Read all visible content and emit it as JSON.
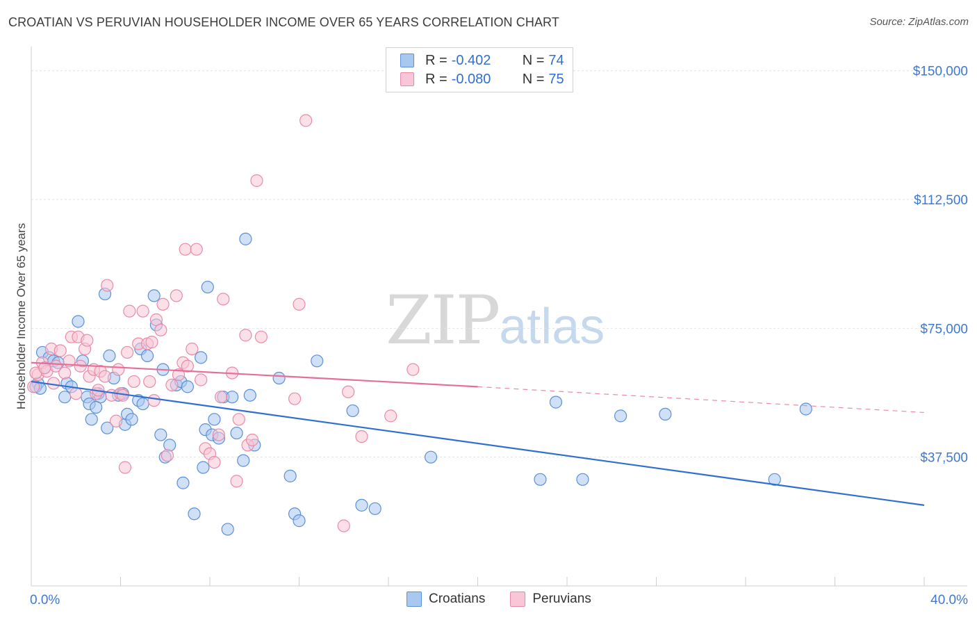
{
  "title": "CROATIAN VS PERUVIAN HOUSEHOLDER INCOME OVER 65 YEARS CORRELATION CHART",
  "source": "Source: ZipAtlas.com",
  "watermark": {
    "zip": "ZIP",
    "atlas": "atlas"
  },
  "legend": {
    "rows": [
      {
        "r_label": "R =",
        "r_value": "-0.402",
        "n_label": "N =",
        "n_value": "74",
        "color": "#a9c8f0",
        "border": "#5b8fd8"
      },
      {
        "r_label": "R =",
        "r_value": "-0.080",
        "n_label": "N =",
        "n_value": "75",
        "color": "#f8c6d6",
        "border": "#e98aa8"
      }
    ]
  },
  "bottom_legend": [
    {
      "label": "Croatians",
      "color": "#a9c8f0",
      "border": "#5b8fd8"
    },
    {
      "label": "Peruvians",
      "color": "#f8c6d6",
      "border": "#e98aa8"
    }
  ],
  "chart_data": {
    "type": "scatter",
    "title": "CROATIAN VS PERUVIAN HOUSEHOLDER INCOME OVER 65 YEARS CORRELATION CHART",
    "xlabel": "",
    "ylabel": "Householder Income Over 65 years",
    "xlim": [
      0,
      40
    ],
    "ylim": [
      0,
      155000
    ],
    "x_tick_labels": [
      "0.0%",
      "40.0%"
    ],
    "y_ticks": [
      37500,
      75000,
      112500,
      150000
    ],
    "y_tick_labels": [
      "$37,500",
      "$75,000",
      "$112,500",
      "$150,000"
    ],
    "grid": true,
    "series": [
      {
        "name": "Croatians",
        "color": "#5b8fd8",
        "fill": "#a9c8f0",
        "trend": {
          "x": [
            0,
            40
          ],
          "y": [
            59500,
            23500
          ],
          "style": "solid"
        },
        "points": [
          [
            0.3,
            59000
          ],
          [
            0.5,
            68000
          ],
          [
            0.6,
            63500
          ],
          [
            0.8,
            66500
          ],
          [
            1.0,
            65500
          ],
          [
            1.2,
            65000
          ],
          [
            1.5,
            55000
          ],
          [
            1.6,
            59000
          ],
          [
            1.8,
            58000
          ],
          [
            2.1,
            77000
          ],
          [
            2.3,
            65500
          ],
          [
            2.5,
            55000
          ],
          [
            2.6,
            53000
          ],
          [
            2.7,
            48500
          ],
          [
            3.0,
            56000
          ],
          [
            3.1,
            55000
          ],
          [
            3.3,
            85000
          ],
          [
            3.4,
            46000
          ],
          [
            3.5,
            67000
          ],
          [
            3.7,
            60500
          ],
          [
            3.9,
            55500
          ],
          [
            4.1,
            56000
          ],
          [
            4.2,
            47000
          ],
          [
            4.3,
            50000
          ],
          [
            4.5,
            48500
          ],
          [
            4.8,
            54000
          ],
          [
            4.9,
            69000
          ],
          [
            5.0,
            53000
          ],
          [
            5.2,
            67000
          ],
          [
            5.5,
            84500
          ],
          [
            5.6,
            76000
          ],
          [
            5.8,
            44000
          ],
          [
            5.9,
            63000
          ],
          [
            6.0,
            37500
          ],
          [
            6.2,
            41000
          ],
          [
            6.5,
            58500
          ],
          [
            6.7,
            59500
          ],
          [
            6.8,
            30000
          ],
          [
            7.0,
            58000
          ],
          [
            7.3,
            21000
          ],
          [
            7.6,
            66500
          ],
          [
            7.7,
            34500
          ],
          [
            7.8,
            45500
          ],
          [
            7.9,
            87000
          ],
          [
            8.1,
            44000
          ],
          [
            8.2,
            48500
          ],
          [
            8.4,
            43000
          ],
          [
            8.6,
            55000
          ],
          [
            8.8,
            16500
          ],
          [
            9.0,
            55000
          ],
          [
            9.2,
            44500
          ],
          [
            9.5,
            36500
          ],
          [
            9.6,
            101000
          ],
          [
            9.8,
            55500
          ],
          [
            10.0,
            41000
          ],
          [
            11.1,
            60500
          ],
          [
            11.6,
            32000
          ],
          [
            11.8,
            21000
          ],
          [
            12.0,
            19000
          ],
          [
            12.8,
            65500
          ],
          [
            14.4,
            51000
          ],
          [
            14.8,
            23500
          ],
          [
            15.4,
            22500
          ],
          [
            17.9,
            37500
          ],
          [
            22.8,
            31000
          ],
          [
            23.5,
            53500
          ],
          [
            24.7,
            31000
          ],
          [
            26.4,
            49500
          ],
          [
            28.4,
            50000
          ],
          [
            33.3,
            31000
          ],
          [
            34.7,
            51500
          ],
          [
            0.2,
            58000
          ],
          [
            0.4,
            57500
          ],
          [
            2.9,
            52000
          ]
        ]
      },
      {
        "name": "Peruvians",
        "color": "#e98aa8",
        "fill": "#f8c6d6",
        "trend": {
          "x": [
            0,
            20
          ],
          "y": [
            65000,
            58000
          ],
          "style": "solid"
        },
        "trend_ext": {
          "x": [
            20,
            40
          ],
          "y": [
            58000,
            50500
          ],
          "style": "dashed"
        },
        "points": [
          [
            0.1,
            58000
          ],
          [
            0.3,
            61500
          ],
          [
            0.5,
            65000
          ],
          [
            0.7,
            62500
          ],
          [
            0.9,
            69000
          ],
          [
            1.1,
            64000
          ],
          [
            1.3,
            68500
          ],
          [
            1.5,
            62000
          ],
          [
            1.7,
            65500
          ],
          [
            1.8,
            72500
          ],
          [
            2.0,
            56000
          ],
          [
            2.1,
            72500
          ],
          [
            2.2,
            64000
          ],
          [
            2.4,
            69000
          ],
          [
            2.5,
            71500
          ],
          [
            2.6,
            61000
          ],
          [
            2.8,
            63000
          ],
          [
            2.9,
            56000
          ],
          [
            3.0,
            57000
          ],
          [
            3.1,
            62500
          ],
          [
            3.3,
            61000
          ],
          [
            3.4,
            87500
          ],
          [
            3.6,
            55500
          ],
          [
            3.8,
            48000
          ],
          [
            3.9,
            63000
          ],
          [
            4.0,
            56000
          ],
          [
            4.1,
            55500
          ],
          [
            4.2,
            34500
          ],
          [
            4.3,
            68000
          ],
          [
            4.4,
            80000
          ],
          [
            4.6,
            59500
          ],
          [
            4.8,
            70500
          ],
          [
            5.0,
            80000
          ],
          [
            5.2,
            70500
          ],
          [
            5.3,
            59500
          ],
          [
            5.4,
            71000
          ],
          [
            5.5,
            54000
          ],
          [
            5.6,
            77500
          ],
          [
            5.8,
            74500
          ],
          [
            5.9,
            82000
          ],
          [
            6.1,
            38000
          ],
          [
            6.3,
            58500
          ],
          [
            6.5,
            84500
          ],
          [
            6.6,
            61500
          ],
          [
            6.8,
            65000
          ],
          [
            6.9,
            98000
          ],
          [
            7.0,
            64000
          ],
          [
            7.2,
            69000
          ],
          [
            7.4,
            98000
          ],
          [
            7.6,
            60000
          ],
          [
            7.8,
            40000
          ],
          [
            8.0,
            38500
          ],
          [
            8.2,
            36000
          ],
          [
            8.4,
            44000
          ],
          [
            8.5,
            55000
          ],
          [
            8.6,
            83500
          ],
          [
            9.0,
            62000
          ],
          [
            9.2,
            30500
          ],
          [
            9.3,
            48500
          ],
          [
            9.6,
            73000
          ],
          [
            9.7,
            41000
          ],
          [
            9.9,
            42500
          ],
          [
            10.1,
            118000
          ],
          [
            10.3,
            72500
          ],
          [
            11.8,
            54500
          ],
          [
            12.0,
            82000
          ],
          [
            12.3,
            135500
          ],
          [
            14.2,
            56500
          ],
          [
            14.8,
            43500
          ],
          [
            16.1,
            49500
          ],
          [
            14.0,
            17500
          ],
          [
            17.1,
            63000
          ],
          [
            0.2,
            62000
          ],
          [
            0.6,
            63500
          ],
          [
            1.0,
            59000
          ]
        ]
      }
    ]
  }
}
